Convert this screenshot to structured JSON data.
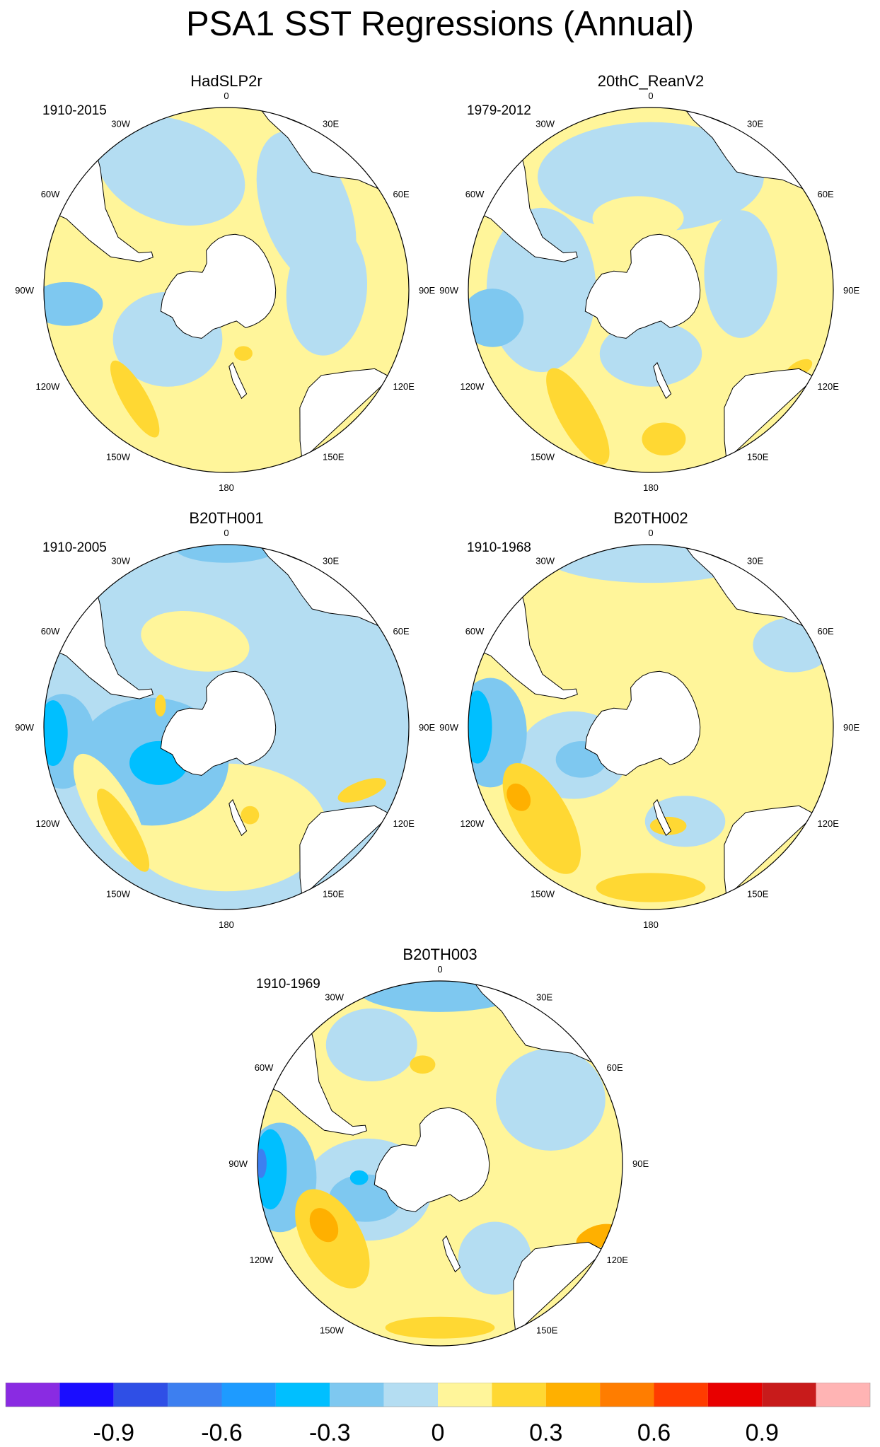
{
  "title": "PSA1 SST Regressions (Annual)",
  "panels": [
    {
      "id": "hadslp2r",
      "name": "HadSLP2r",
      "period": "1910-2015",
      "style": "obs1"
    },
    {
      "id": "20thc-reanv2",
      "name": "20thC_ReanV2",
      "period": "1979-2012",
      "style": "obs2"
    },
    {
      "id": "b20th001",
      "name": "B20TH001",
      "period": "1910-2005",
      "style": "m1"
    },
    {
      "id": "b20th002",
      "name": "B20TH002",
      "period": "1910-1968",
      "style": "m2"
    },
    {
      "id": "b20th003",
      "name": "B20TH003",
      "period": "1910-1969",
      "style": "m3"
    }
  ],
  "longitude_labels": [
    "0",
    "30E",
    "60E",
    "90E",
    "120E",
    "150E",
    "180",
    "150W",
    "120W",
    "90W",
    "60W",
    "30W"
  ],
  "colorbar": {
    "colors": [
      "#8a2be2",
      "#1a0dff",
      "#2f4fe6",
      "#3d7ff0",
      "#1e9bff",
      "#00bfff",
      "#7ec8f0",
      "#b4ddf2",
      "#fff59a",
      "#ffd833",
      "#ffb000",
      "#ff7d00",
      "#ff3c00",
      "#e80000",
      "#c81b1b",
      "#ffb4b4"
    ],
    "tick_labels": [
      "-0.9",
      "-0.6",
      "-0.3",
      "0",
      "0.3",
      "0.6",
      "0.9"
    ]
  }
}
